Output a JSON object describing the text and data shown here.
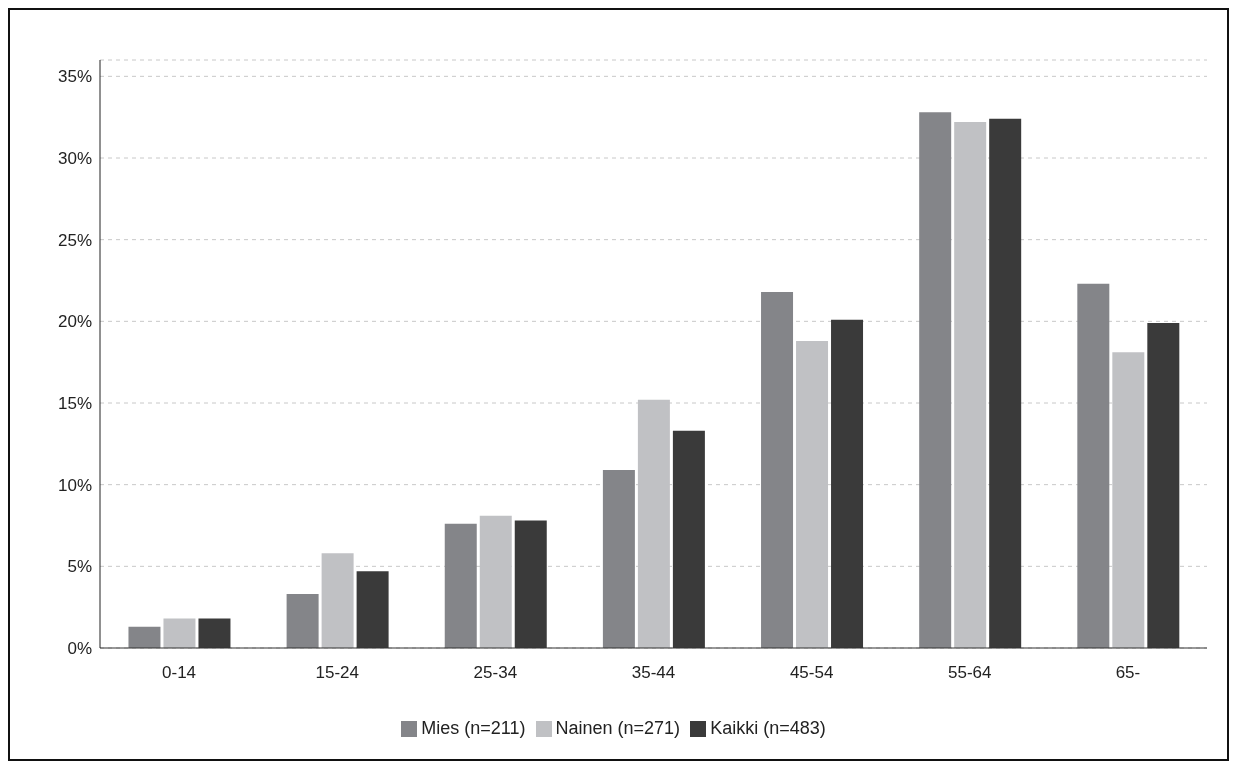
{
  "chart_data": {
    "type": "bar",
    "categories": [
      "0-14",
      "15-24",
      "25-34",
      "35-44",
      "45-54",
      "55-64",
      "65-"
    ],
    "series": [
      {
        "name": "Mies (n=211)",
        "color": "#848589",
        "values": [
          1.3,
          3.3,
          7.6,
          10.9,
          21.8,
          32.8,
          22.3
        ]
      },
      {
        "name": "Nainen (n=271)",
        "color": "#c0c1c4",
        "values": [
          1.8,
          5.8,
          8.1,
          15.2,
          18.8,
          32.2,
          18.1
        ]
      },
      {
        "name": "Kaikki (n=483)",
        "color": "#3a3a3a",
        "values": [
          1.8,
          4.7,
          7.8,
          13.3,
          20.1,
          32.4,
          19.9
        ]
      }
    ],
    "ylim": [
      0,
      36
    ],
    "yticks": [
      {
        "value": 0,
        "label": "0%"
      },
      {
        "value": 5,
        "label": "5%"
      },
      {
        "value": 10,
        "label": "10%"
      },
      {
        "value": 15,
        "label": "15%"
      },
      {
        "value": 20,
        "label": "20%"
      },
      {
        "value": 25,
        "label": "25%"
      },
      {
        "value": 30,
        "label": "30%"
      },
      {
        "value": 35,
        "label": "35%"
      }
    ],
    "grid": "y",
    "legend": "bottom"
  }
}
